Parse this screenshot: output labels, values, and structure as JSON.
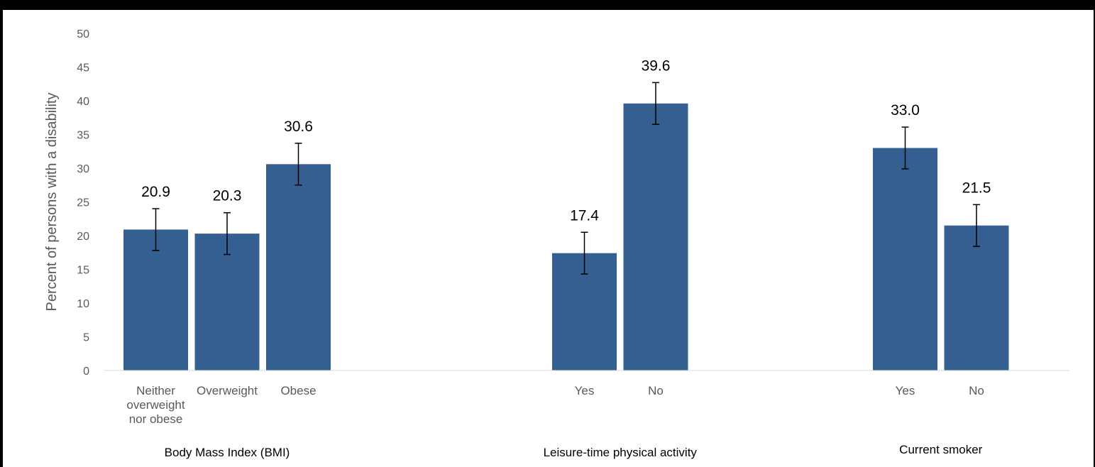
{
  "chart_data": {
    "type": "bar",
    "ylabel": "Percent of persons  with a disability",
    "ylim": [
      0,
      50
    ],
    "yticks": [
      0,
      5,
      10,
      15,
      20,
      25,
      30,
      35,
      40,
      45,
      50
    ],
    "grid": false,
    "bar_color": "#365F91",
    "groups": [
      {
        "label": "Body Mass Index (BMI)",
        "bars": [
          {
            "category": "Neither overweight nor obese",
            "value": 20.9,
            "value_label": "20.9",
            "error": [
              17.8,
              24.0
            ]
          },
          {
            "category": "Overweight",
            "value": 20.3,
            "value_label": "20.3",
            "error": [
              17.2,
              23.4
            ]
          },
          {
            "category": "Obese",
            "value": 30.6,
            "value_label": "30.6",
            "error": [
              27.5,
              33.7
            ]
          }
        ]
      },
      {
        "label": "Leisure-time physical activity",
        "bars": [
          {
            "category": "Yes",
            "value": 17.4,
            "value_label": "17.4",
            "error": [
              14.3,
              20.5
            ]
          },
          {
            "category": "No",
            "value": 39.6,
            "value_label": "39.6",
            "error": [
              36.5,
              42.7
            ]
          }
        ]
      },
      {
        "label": "Current smoker",
        "bars": [
          {
            "category": "Yes",
            "value": 33.0,
            "value_label": "33.0",
            "error": [
              29.9,
              36.1
            ]
          },
          {
            "category": "No",
            "value": 21.5,
            "value_label": "21.5",
            "error": [
              18.4,
              24.6
            ]
          }
        ]
      }
    ]
  }
}
